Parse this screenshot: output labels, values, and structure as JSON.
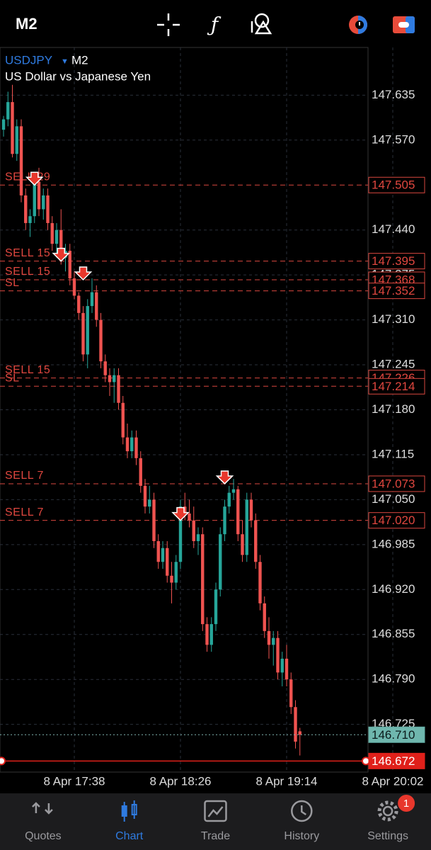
{
  "header": {
    "timeframe": "M2"
  },
  "chart": {
    "type": "candlestick",
    "symbol": "USDJPY",
    "timeframe": "M2",
    "description": "US Dollar vs Japanese Yen",
    "ylim": [
      146.656,
      147.704
    ],
    "yticks": [
      147.635,
      {
        "value": 147.57,
        "label": "147.570"
      },
      {
        "value": 147.44,
        "label": "147.440"
      },
      147.375,
      {
        "value": 147.31,
        "label": "147.310"
      },
      147.245,
      {
        "value": 147.18,
        "label": "147.180"
      },
      147.115,
      {
        "value": 147.05,
        "label": "147.050"
      },
      146.985,
      {
        "value": 146.92,
        "label": "146.920"
      },
      146.855,
      {
        "value": 146.79,
        "label": "146.790"
      },
      146.725
    ],
    "xticks": [
      {
        "index": 16,
        "label": "8 Apr 17:38"
      },
      {
        "index": 40,
        "label": "8 Apr 18:26"
      },
      {
        "index": 64,
        "label": "8 Apr 19:14"
      },
      {
        "index": 88,
        "label": "8 Apr 20:02"
      }
    ],
    "bull_color": "#26a69a",
    "bear_color": "#ef5350",
    "candles": {
      "open": [
        147.585,
        147.6,
        147.625,
        147.55,
        147.59,
        147.49,
        147.45,
        147.46,
        147.51,
        147.47,
        147.49,
        147.45,
        147.42,
        147.44,
        147.4,
        147.41,
        147.37,
        147.345,
        147.32,
        147.26,
        147.33,
        147.35,
        147.31,
        147.25,
        147.23,
        147.22,
        147.23,
        147.19,
        147.14,
        147.12,
        147.14,
        147.11,
        147.07,
        147.04,
        147.05,
        146.99,
        146.96,
        146.98,
        146.94,
        146.93,
        146.96,
        147.04,
        147.03,
        147.02,
        146.99,
        147,
        146.87,
        146.84,
        146.87,
        146.92,
        147,
        147.04,
        147.06,
        147.065,
        147,
        146.97,
        147.05,
        147.02,
        146.96,
        146.9,
        146.86,
        146.84,
        146.85,
        146.8,
        146.82,
        146.79,
        146.75,
        146.715
      ],
      "high": [
        147.605,
        147.64,
        147.65,
        147.6,
        147.6,
        147.5,
        147.47,
        147.52,
        147.53,
        147.5,
        147.5,
        147.46,
        147.45,
        147.47,
        147.42,
        147.42,
        147.38,
        147.35,
        147.33,
        147.34,
        147.37,
        147.36,
        147.32,
        147.26,
        147.24,
        147.24,
        147.24,
        147.2,
        147.16,
        147.15,
        147.15,
        147.12,
        147.08,
        147.07,
        147.06,
        147,
        146.99,
        146.99,
        146.96,
        146.97,
        147.05,
        147.06,
        147.05,
        147.04,
        147.01,
        147.01,
        146.88,
        146.88,
        146.93,
        147.01,
        147.05,
        147.07,
        147.08,
        147.07,
        147.02,
        147.06,
        147.06,
        147.03,
        146.97,
        146.91,
        146.88,
        146.86,
        146.86,
        146.83,
        146.84,
        146.8,
        146.76,
        146.72
      ],
      "low": [
        147.575,
        147.59,
        147.545,
        147.54,
        147.48,
        147.44,
        147.43,
        147.45,
        147.46,
        147.455,
        147.44,
        147.41,
        147.4,
        147.39,
        147.38,
        147.36,
        147.34,
        147.31,
        147.25,
        147.24,
        147.32,
        147.3,
        147.24,
        147.22,
        147.2,
        147.19,
        147.18,
        147.13,
        147.11,
        147.11,
        147.1,
        147.06,
        147.03,
        147.03,
        146.98,
        146.95,
        146.95,
        146.93,
        146.9,
        146.92,
        146.95,
        147.02,
        147.01,
        146.98,
        146.97,
        146.86,
        146.83,
        146.83,
        146.86,
        146.91,
        146.99,
        147.03,
        147.05,
        146.99,
        146.96,
        146.96,
        147.01,
        146.95,
        146.89,
        146.85,
        146.82,
        146.81,
        146.79,
        146.78,
        146.78,
        146.74,
        146.69,
        146.68
      ],
      "close": [
        147.6,
        147.625,
        147.55,
        147.59,
        147.49,
        147.45,
        147.46,
        147.51,
        147.47,
        147.49,
        147.45,
        147.42,
        147.44,
        147.4,
        147.41,
        147.37,
        147.345,
        147.32,
        147.26,
        147.33,
        147.35,
        147.31,
        147.25,
        147.23,
        147.22,
        147.23,
        147.19,
        147.14,
        147.12,
        147.14,
        147.11,
        147.07,
        147.04,
        147.05,
        146.99,
        146.96,
        146.98,
        146.94,
        146.93,
        146.96,
        147.04,
        147.03,
        147.02,
        146.99,
        147,
        146.87,
        146.84,
        146.87,
        146.92,
        147,
        147.04,
        147.06,
        147.065,
        147,
        146.97,
        147.05,
        147.02,
        146.96,
        146.9,
        146.86,
        146.84,
        146.85,
        146.8,
        146.82,
        146.79,
        146.75,
        146.7,
        146.71
      ]
    },
    "orders": [
      {
        "label": "SELL 29",
        "price": 147.505
      },
      {
        "label": "SELL 15",
        "price": 147.395
      },
      {
        "label": "SELL 15",
        "price": 147.368
      },
      {
        "label": "SL",
        "price": 147.352
      },
      {
        "label": "SELL 15",
        "price": 147.226
      },
      {
        "label": "SL",
        "price": 147.214
      },
      {
        "label": "SELL 7",
        "price": 147.073
      },
      {
        "label": "SELL 7",
        "price": {
          "value": 147.02,
          "label": "147.020"
        }
      }
    ],
    "entries": [
      {
        "candle": 7,
        "price": 147.505
      },
      {
        "candle": 13,
        "price": 147.395
      },
      {
        "candle": 18,
        "price": 147.368
      },
      {
        "candle": 40,
        "price": {
          "value": 147.02,
          "label": "147.020"
        }
      },
      {
        "candle": 50,
        "price": 147.073
      }
    ],
    "bid": {
      "value": 146.71,
      "label": "146.710"
    },
    "ask": 146.672
  },
  "nav": {
    "tabs": [
      "Quotes",
      "Chart",
      "Trade",
      "History",
      "Settings"
    ],
    "active": "Chart",
    "badge": 1
  }
}
